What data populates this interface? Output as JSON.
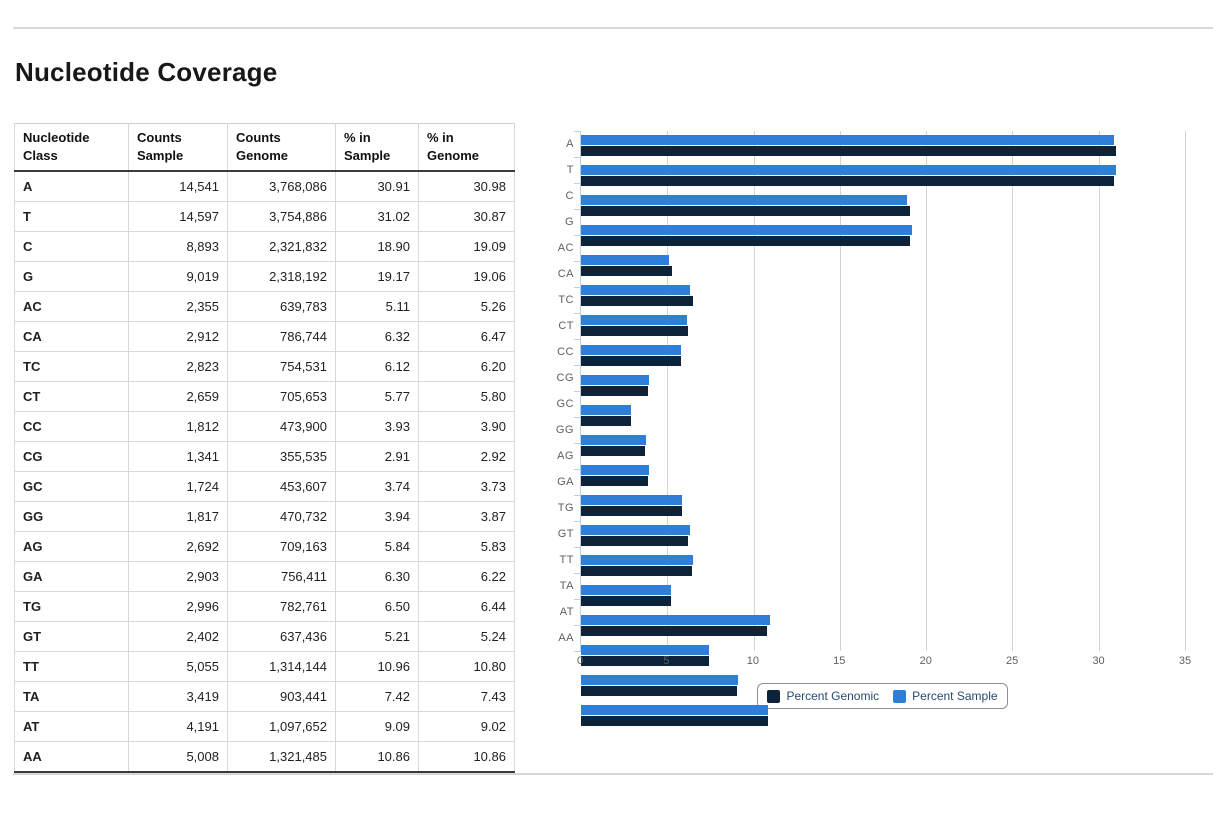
{
  "page": {
    "title": "Nucleotide Coverage"
  },
  "table": {
    "columns": [
      "Nucleotide Class",
      "Counts Sample",
      "Counts Genome",
      "% in Sample",
      "% in Genome"
    ],
    "rows": [
      [
        "A",
        "14,541",
        "3,768,086",
        "30.91",
        "30.98"
      ],
      [
        "T",
        "14,597",
        "3,754,886",
        "31.02",
        "30.87"
      ],
      [
        "C",
        "8,893",
        "2,321,832",
        "18.90",
        "19.09"
      ],
      [
        "G",
        "9,019",
        "2,318,192",
        "19.17",
        "19.06"
      ],
      [
        "AC",
        "2,355",
        "639,783",
        "5.11",
        "5.26"
      ],
      [
        "CA",
        "2,912",
        "786,744",
        "6.32",
        "6.47"
      ],
      [
        "TC",
        "2,823",
        "754,531",
        "6.12",
        "6.20"
      ],
      [
        "CT",
        "2,659",
        "705,653",
        "5.77",
        "5.80"
      ],
      [
        "CC",
        "1,812",
        "473,900",
        "3.93",
        "3.90"
      ],
      [
        "CG",
        "1,341",
        "355,535",
        "2.91",
        "2.92"
      ],
      [
        "GC",
        "1,724",
        "453,607",
        "3.74",
        "3.73"
      ],
      [
        "GG",
        "1,817",
        "470,732",
        "3.94",
        "3.87"
      ],
      [
        "AG",
        "2,692",
        "709,163",
        "5.84",
        "5.83"
      ],
      [
        "GA",
        "2,903",
        "756,411",
        "6.30",
        "6.22"
      ],
      [
        "TG",
        "2,996",
        "782,761",
        "6.50",
        "6.44"
      ],
      [
        "GT",
        "2,402",
        "637,436",
        "5.21",
        "5.24"
      ],
      [
        "TT",
        "5,055",
        "1,314,144",
        "10.96",
        "10.80"
      ],
      [
        "TA",
        "3,419",
        "903,441",
        "7.42",
        "7.43"
      ],
      [
        "AT",
        "4,191",
        "1,097,652",
        "9.09",
        "9.02"
      ],
      [
        "AA",
        "5,008",
        "1,321,485",
        "10.86",
        "10.86"
      ]
    ]
  },
  "chart_data": {
    "type": "bar",
    "orientation": "horizontal",
    "title": "",
    "xlabel": "",
    "ylabel": "",
    "categories": [
      "A",
      "T",
      "C",
      "G",
      "AC",
      "CA",
      "TC",
      "CT",
      "CC",
      "CG",
      "GC",
      "GG",
      "AG",
      "GA",
      "TG",
      "GT",
      "TT",
      "TA",
      "AT",
      "AA"
    ],
    "series": [
      {
        "name": "Percent Sample",
        "color": "#2f7ed8",
        "values": [
          30.91,
          31.02,
          18.9,
          19.17,
          5.11,
          6.32,
          6.12,
          5.77,
          3.93,
          2.91,
          3.74,
          3.94,
          5.84,
          6.3,
          6.5,
          5.21,
          10.96,
          7.42,
          9.09,
          10.86
        ]
      },
      {
        "name": "Percent Genomic",
        "color": "#0d233a",
        "values": [
          30.98,
          30.87,
          19.09,
          19.06,
          5.26,
          6.47,
          6.2,
          5.8,
          3.9,
          2.92,
          3.73,
          3.87,
          5.83,
          6.22,
          6.44,
          5.24,
          10.8,
          7.43,
          9.02,
          10.86
        ]
      }
    ],
    "bar_order_in_group": [
      "Percent Sample",
      "Percent Genomic"
    ],
    "axis": {
      "min": 0,
      "max": 35,
      "ticks": [
        0,
        5,
        10,
        15,
        20,
        25,
        30,
        35
      ]
    },
    "grid": true,
    "legend": [
      "Percent Genomic",
      "Percent Sample"
    ],
    "legend_position": "bottom-center"
  },
  "colors": {
    "rule": "#d8d8d8",
    "grid_line": "#d4d4d4",
    "axis_tick": "#c0d0e0",
    "axis_label": "#606060",
    "legend_text": "#274b6d",
    "legend_border": "#8f8f8f",
    "table_border_dark": "#3c3c3c",
    "table_border_light": "#d9d9d9"
  }
}
